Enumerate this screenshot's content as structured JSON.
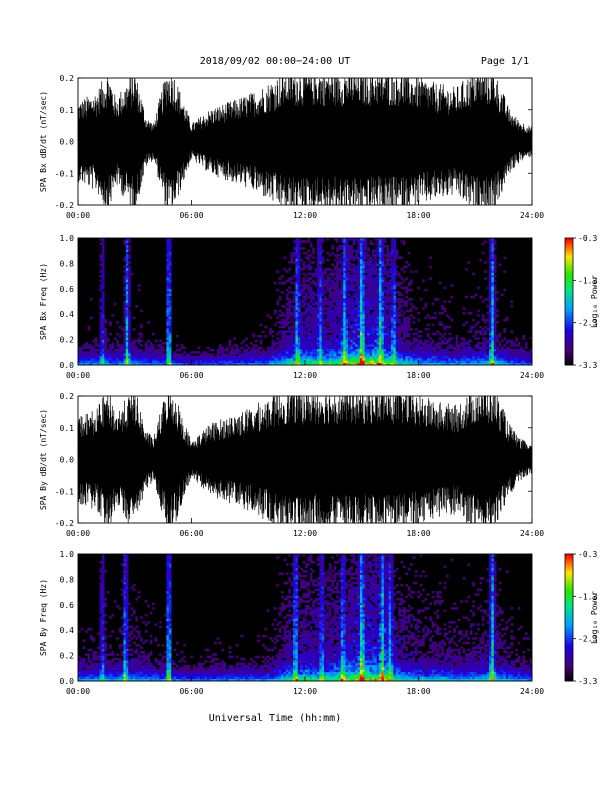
{
  "header": {
    "title": "2018/09/02  00:00−24:00 UT",
    "page": "Page 1/1"
  },
  "footer": {
    "xlabel": "Universal Time (hh:mm)"
  },
  "colors": {
    "background": "#ffffff",
    "ink": "#000000"
  },
  "chart_data": [
    {
      "type": "line",
      "ylabel": "SPA Bx dB/dt (nT/sec)",
      "x_range_hours": [
        0,
        24
      ],
      "xticks": [
        "00:00",
        "06:00",
        "12:00",
        "18:00",
        "24:00"
      ],
      "ylim": [
        -0.2,
        0.2
      ],
      "yticks": [
        "-0.2",
        "-0.1",
        "0.0",
        "0.1",
        "0.2"
      ],
      "envelope": {
        "hours": [
          0,
          1,
          1.6,
          2,
          3,
          3.6,
          4,
          4.7,
          5,
          6,
          7,
          8,
          9,
          10,
          11,
          12,
          13,
          14,
          15,
          16,
          17,
          18,
          19,
          20,
          21,
          22,
          22.8,
          23.3,
          24
        ],
        "amplitude": [
          0.11,
          0.14,
          0.2,
          0.12,
          0.2,
          0.07,
          0.05,
          0.2,
          0.2,
          0.05,
          0.09,
          0.11,
          0.13,
          0.16,
          0.2,
          0.2,
          0.2,
          0.2,
          0.2,
          0.2,
          0.2,
          0.18,
          0.16,
          0.15,
          0.2,
          0.2,
          0.09,
          0.06,
          0.04
        ]
      }
    },
    {
      "type": "heatmap",
      "ylabel": "SPA Bx Freq (Hz)",
      "x_range_hours": [
        0,
        24
      ],
      "xticks": [
        "00:00",
        "06:00",
        "12:00",
        "18:00",
        "24:00"
      ],
      "ylim": [
        0,
        1.0
      ],
      "yticks": [
        "0.0",
        "0.2",
        "0.4",
        "0.6",
        "0.8",
        "1.0"
      ],
      "colorbar": {
        "label": "Log₁₀ Power",
        "ticks": [
          "-0.3",
          "-1.3",
          "-2.3",
          "-3.3"
        ],
        "range": [
          -3.3,
          -0.3
        ]
      },
      "bursts": {
        "hours": [
          1.3,
          2.6,
          4.8,
          11.6,
          12.8,
          14.1,
          15.0,
          16.0,
          16.7,
          21.9
        ],
        "strength": [
          0.45,
          0.8,
          1.0,
          0.7,
          0.5,
          0.65,
          0.8,
          0.75,
          0.55,
          0.9
        ]
      },
      "activity": {
        "hours": [
          0,
          3,
          5,
          6,
          8,
          10,
          11,
          12,
          13,
          14,
          15,
          16,
          17,
          18,
          19,
          20,
          21,
          22,
          23,
          24
        ],
        "level": [
          0.2,
          0.25,
          0.15,
          0.1,
          0.15,
          0.2,
          0.45,
          0.55,
          0.5,
          0.65,
          0.8,
          0.75,
          0.45,
          0.3,
          0.3,
          0.25,
          0.3,
          0.35,
          0.2,
          0.15
        ]
      }
    },
    {
      "type": "line",
      "ylabel": "SPA By dB/dt (nT/sec)",
      "x_range_hours": [
        0,
        24
      ],
      "xticks": [
        "00:00",
        "06:00",
        "12:00",
        "18:00",
        "24:00"
      ],
      "ylim": [
        -0.2,
        0.2
      ],
      "yticks": [
        "-0.2",
        "-0.1",
        "0.0",
        "0.1",
        "0.2"
      ],
      "envelope": {
        "hours": [
          0,
          1,
          1.6,
          2,
          3,
          3.6,
          4,
          4.7,
          5,
          6,
          7,
          8,
          9,
          10,
          11,
          12,
          13,
          14,
          15,
          16,
          17,
          18,
          19,
          20,
          21,
          22,
          22.8,
          23.3,
          24
        ],
        "amplitude": [
          0.12,
          0.14,
          0.2,
          0.13,
          0.2,
          0.08,
          0.06,
          0.2,
          0.2,
          0.05,
          0.1,
          0.12,
          0.14,
          0.17,
          0.2,
          0.2,
          0.2,
          0.2,
          0.2,
          0.2,
          0.2,
          0.18,
          0.16,
          0.15,
          0.2,
          0.2,
          0.1,
          0.06,
          0.04
        ]
      }
    },
    {
      "type": "heatmap",
      "ylabel": "SPA By Freq (Hz)",
      "x_range_hours": [
        0,
        24
      ],
      "xticks": [
        "00:00",
        "06:00",
        "12:00",
        "18:00",
        "24:00"
      ],
      "ylim": [
        0,
        1.0
      ],
      "yticks": [
        "0.0",
        "0.2",
        "0.4",
        "0.6",
        "0.8",
        "1.0"
      ],
      "colorbar": {
        "label": "Log₁₀ Power",
        "ticks": [
          "-0.3",
          "-1.3",
          "-2.3",
          "-3.3"
        ],
        "range": [
          -3.3,
          -0.3
        ]
      },
      "bursts": {
        "hours": [
          1.3,
          2.5,
          4.8,
          11.5,
          12.9,
          14.0,
          15.0,
          16.1,
          16.5,
          21.9
        ],
        "strength": [
          0.5,
          0.8,
          1.0,
          0.7,
          0.55,
          0.6,
          0.8,
          0.75,
          0.6,
          0.95
        ]
      },
      "activity": {
        "hours": [
          0,
          3,
          5,
          6,
          8,
          10,
          11,
          12,
          13,
          14,
          15,
          16,
          17,
          18,
          19,
          20,
          21,
          22,
          23,
          24
        ],
        "level": [
          0.25,
          0.3,
          0.2,
          0.15,
          0.2,
          0.2,
          0.45,
          0.55,
          0.5,
          0.6,
          0.8,
          0.75,
          0.45,
          0.35,
          0.35,
          0.3,
          0.35,
          0.4,
          0.25,
          0.2
        ]
      }
    }
  ]
}
